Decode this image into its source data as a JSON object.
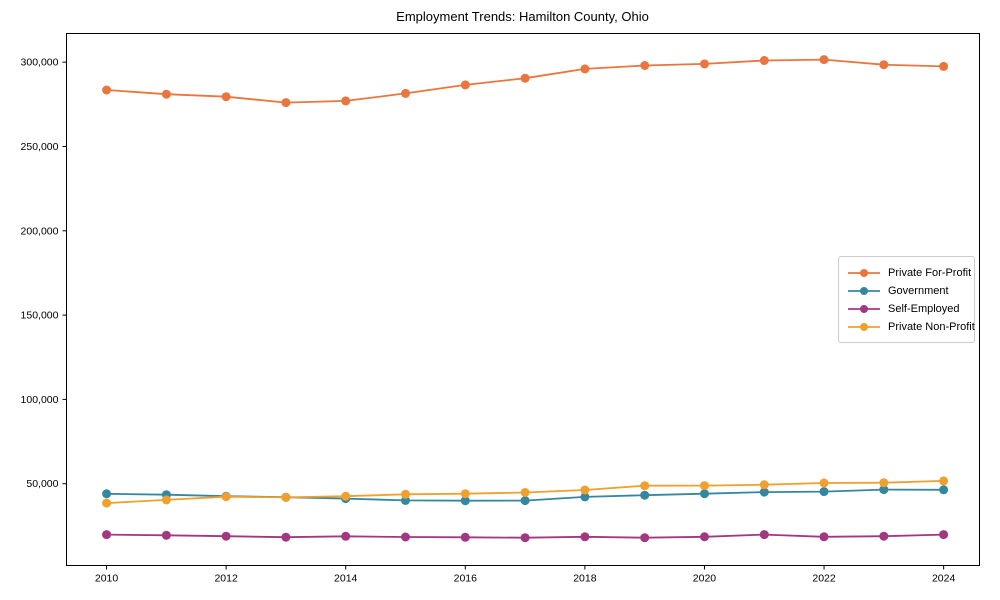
{
  "chart_data": {
    "type": "line",
    "title": "Employment Trends: Hamilton County, Ohio",
    "xlabel": "",
    "ylabel": "",
    "x": [
      2010,
      2011,
      2012,
      2013,
      2014,
      2015,
      2016,
      2017,
      2018,
      2019,
      2020,
      2021,
      2022,
      2023,
      2024
    ],
    "series": [
      {
        "name": "Private For-Profit",
        "color": "#E9763E",
        "values": [
          283500,
          281000,
          279500,
          276000,
          277000,
          281500,
          286500,
          290500,
          296000,
          298000,
          299000,
          301000,
          301500,
          298500,
          297500
        ]
      },
      {
        "name": "Government",
        "color": "#35879F",
        "values": [
          44000,
          43500,
          42600,
          42000,
          41200,
          40100,
          39900,
          40000,
          42200,
          43200,
          44100,
          45000,
          45300,
          46500,
          46400
        ]
      },
      {
        "name": "Self-Employed",
        "color": "#A23880",
        "values": [
          19800,
          19400,
          18900,
          18300,
          18800,
          18400,
          18200,
          18000,
          18500,
          18000,
          18500,
          19800,
          18500,
          18900,
          19800
        ]
      },
      {
        "name": "Private Non-Profit",
        "color": "#F0A02F",
        "values": [
          38500,
          40400,
          42300,
          41900,
          42600,
          43700,
          44100,
          44800,
          46300,
          48800,
          48900,
          49400,
          50400,
          50600,
          51700
        ]
      }
    ],
    "xlim": [
      2009.33,
      2024.6
    ],
    "ylim": [
      1500,
      317000
    ],
    "xticks": [
      2010,
      2012,
      2014,
      2016,
      2018,
      2020,
      2022,
      2024
    ],
    "xtick_labels": [
      "2010",
      "2012",
      "2014",
      "2016",
      "2018",
      "2020",
      "2022",
      "2024"
    ],
    "yticks": [
      50000,
      100000,
      150000,
      200000,
      250000,
      300000
    ],
    "ytick_labels": [
      "50,000",
      "100,000",
      "150,000",
      "200,000",
      "250,000",
      "300,000"
    ],
    "grid": false,
    "legend_position": "right",
    "marker": "circle",
    "line_width": 1.8,
    "marker_radius": 4.5,
    "frame_color": "#000000",
    "background_color": "#ffffff"
  }
}
